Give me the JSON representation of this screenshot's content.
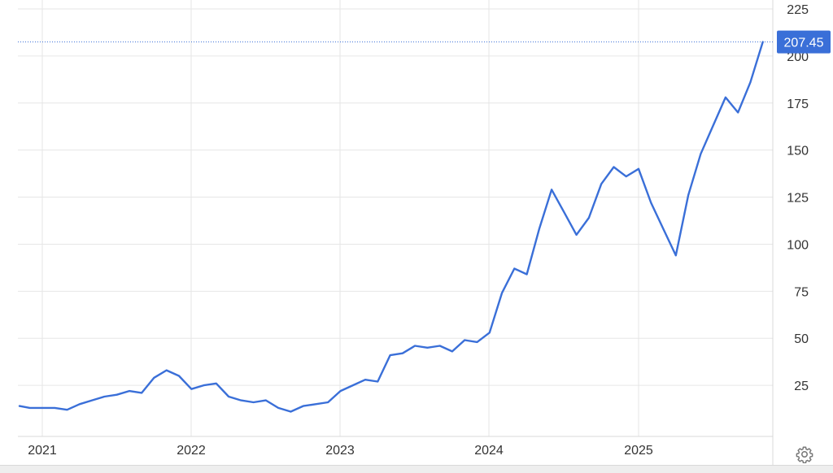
{
  "chart_data": {
    "type": "line",
    "title": "",
    "xlabel": "",
    "ylabel": "",
    "x_tick_labels": [
      "2021",
      "2022",
      "2023",
      "2024",
      "2025"
    ],
    "y_ticks": [
      25,
      50,
      75,
      100,
      125,
      150,
      175,
      200,
      225
    ],
    "xlim": [
      "2020-11",
      "2025-11"
    ],
    "ylim": [
      0,
      225
    ],
    "grid": true,
    "legend": "none",
    "series": [
      {
        "x": [
          "2020-11",
          "2020-12",
          "2021-01",
          "2021-02",
          "2021-03",
          "2021-04",
          "2021-05",
          "2021-06",
          "2021-07",
          "2021-08",
          "2021-09",
          "2021-10",
          "2021-11",
          "2021-12",
          "2022-01",
          "2022-02",
          "2022-03",
          "2022-04",
          "2022-05",
          "2022-06",
          "2022-07",
          "2022-08",
          "2022-09",
          "2022-10",
          "2022-11",
          "2022-12",
          "2023-01",
          "2023-02",
          "2023-03",
          "2023-04",
          "2023-05",
          "2023-06",
          "2023-07",
          "2023-08",
          "2023-09",
          "2023-10",
          "2023-11",
          "2023-12",
          "2024-01",
          "2024-02",
          "2024-03",
          "2024-04",
          "2024-05",
          "2024-06",
          "2024-07",
          "2024-08",
          "2024-09",
          "2024-10",
          "2024-11",
          "2024-12",
          "2025-01",
          "2025-02",
          "2025-03",
          "2025-04",
          "2025-05",
          "2025-06",
          "2025-07",
          "2025-08",
          "2025-09",
          "2025-10",
          "2025-11"
        ],
        "values": [
          14,
          13,
          13,
          13,
          12,
          15,
          17,
          19,
          20,
          22,
          21,
          29,
          33,
          30,
          23,
          25,
          26,
          19,
          17,
          16,
          17,
          13,
          11,
          14,
          15,
          16,
          22,
          25,
          28,
          27,
          41,
          42,
          46,
          45,
          46,
          43,
          49,
          48,
          53,
          74,
          87,
          84,
          108,
          129,
          117,
          105,
          114,
          132,
          141,
          136,
          140,
          122,
          108,
          94,
          126,
          148,
          163,
          178,
          170,
          186,
          207.45
        ]
      }
    ],
    "last_value_badge": "207.45",
    "colors": {
      "line": "#3a6fd8",
      "badge": "#3a6fd8",
      "grid": "#e6e6e6"
    }
  },
  "icons": {
    "settings": "gear-icon"
  }
}
